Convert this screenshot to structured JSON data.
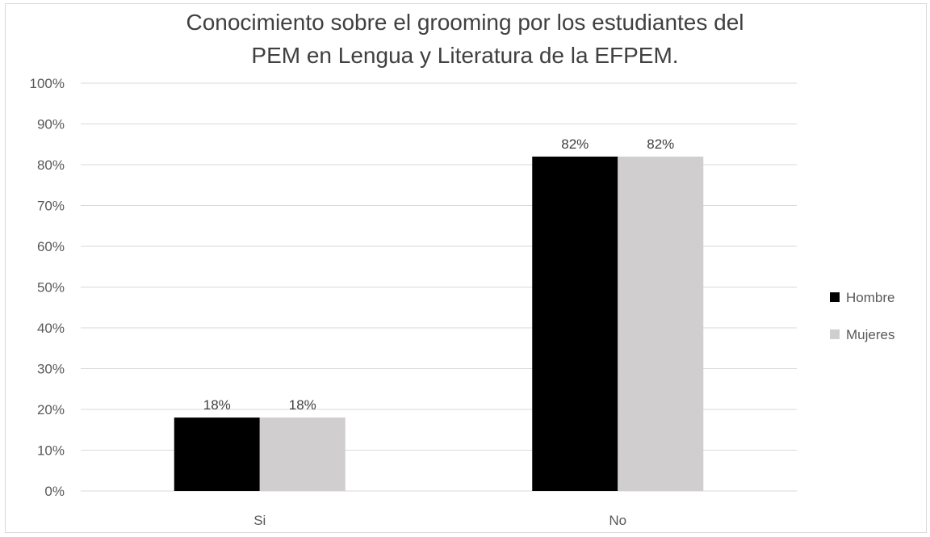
{
  "chart_data": {
    "type": "bar",
    "title_lines": [
      "Conocimiento sobre el grooming por los estudiantes del",
      "PEM en Lengua y Literatura de la EFPEM."
    ],
    "categories": [
      "Si",
      "No"
    ],
    "series": [
      {
        "name": "Hombre",
        "values": [
          18,
          82
        ],
        "labels": [
          "18%",
          "82%"
        ],
        "color": "#000000"
      },
      {
        "name": "Mujeres",
        "values": [
          18,
          82
        ],
        "labels": [
          "18%",
          "82%"
        ],
        "color": "#d0cece"
      }
    ],
    "ylim": [
      0,
      100
    ],
    "yticks": [
      0,
      10,
      20,
      30,
      40,
      50,
      60,
      70,
      80,
      90,
      100
    ],
    "ytick_labels": [
      "0%",
      "10%",
      "20%",
      "30%",
      "40%",
      "50%",
      "60%",
      "70%",
      "80%",
      "90%",
      "100%"
    ],
    "grid": true,
    "legend_position": "right",
    "xlabel": "",
    "ylabel": ""
  }
}
